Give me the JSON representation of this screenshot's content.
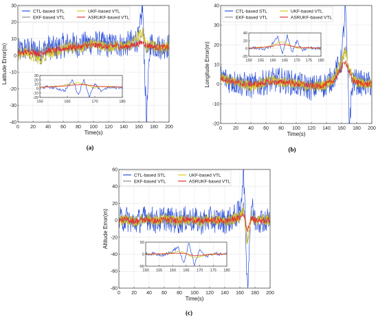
{
  "colors": {
    "CTL-based STL": "#2a4fd8",
    "EKF-based VTL": "#8a8a8a",
    "UKF-based VTL": "#d8c820",
    "ASRUKF-based VTL": "#e23030"
  },
  "chart_data": [
    {
      "type": "line",
      "panel_label": "(a)",
      "xlabel": "Time(s)",
      "ylabel": "Latitude Error(m)",
      "xlim": [
        0,
        200
      ],
      "ylim": [
        -40,
        30
      ],
      "xticks": [
        0,
        20,
        40,
        60,
        80,
        100,
        120,
        140,
        160,
        180,
        200
      ],
      "yticks": [
        -40,
        -30,
        -20,
        -10,
        0,
        10,
        20,
        30
      ],
      "grid": true,
      "legend_position": "top",
      "series": [
        {
          "name": "CTL-based STL",
          "x": [
            0,
            10,
            20,
            30,
            40,
            50,
            60,
            70,
            80,
            90,
            100,
            110,
            120,
            130,
            140,
            150,
            160,
            165,
            170,
            175,
            180,
            190,
            200
          ],
          "y": [
            2,
            4,
            3,
            2,
            5,
            4,
            6,
            7,
            6,
            7,
            8,
            7,
            6,
            7,
            6,
            8,
            10,
            30,
            -40,
            8,
            6,
            5,
            6
          ]
        },
        {
          "name": "EKF-based VTL",
          "x": [
            0,
            10,
            20,
            30,
            40,
            50,
            60,
            70,
            80,
            90,
            100,
            110,
            120,
            130,
            140,
            150,
            160,
            165,
            170,
            175,
            180,
            190,
            200
          ],
          "y": [
            1,
            3,
            2,
            1,
            4,
            3,
            5,
            6,
            5,
            6,
            7,
            6,
            5,
            6,
            5,
            7,
            8,
            14,
            4,
            7,
            5,
            4,
            5
          ]
        },
        {
          "name": "UKF-based VTL",
          "x": [
            0,
            10,
            20,
            30,
            40,
            50,
            60,
            70,
            80,
            90,
            100,
            110,
            120,
            130,
            140,
            150,
            160,
            165,
            170,
            175,
            180,
            190,
            200
          ],
          "y": [
            0,
            2,
            -1,
            -3,
            2,
            1,
            4,
            5,
            4,
            6,
            7,
            6,
            5,
            6,
            5,
            7,
            12,
            14,
            5,
            8,
            6,
            5,
            6
          ]
        },
        {
          "name": "ASRUKF-based VTL",
          "x": [
            0,
            10,
            20,
            30,
            40,
            50,
            60,
            70,
            80,
            90,
            100,
            110,
            120,
            130,
            140,
            150,
            160,
            165,
            170,
            175,
            180,
            190,
            200
          ],
          "y": [
            1,
            2,
            2,
            1,
            3,
            3,
            4,
            5,
            5,
            6,
            6,
            6,
            5,
            6,
            5,
            6,
            7,
            8,
            6,
            6,
            5,
            5,
            5
          ]
        }
      ],
      "inset": {
        "xlim": [
          150,
          180
        ],
        "ylim": [
          -20,
          30
        ],
        "xticks": [
          150,
          160,
          170,
          180
        ],
        "yticks": [
          -20,
          -10,
          0,
          10,
          20,
          30
        ],
        "series": [
          {
            "name": "CTL-based STL",
            "x": [
              150,
              153,
              156,
              159,
              162,
              164,
              166,
              168,
              170,
              172,
              175,
              178,
              180
            ],
            "y": [
              2,
              4,
              1,
              -5,
              20,
              -15,
              22,
              -18,
              10,
              -5,
              3,
              2,
              4
            ]
          },
          {
            "name": "UKF-based VTL",
            "x": [
              150,
              153,
              156,
              159,
              162,
              164,
              166,
              168,
              170,
              172,
              175,
              178,
              180
            ],
            "y": [
              3,
              4,
              5,
              8,
              12,
              14,
              10,
              5,
              2,
              4,
              5,
              4,
              3
            ]
          },
          {
            "name": "ASRUKF-based VTL",
            "x": [
              150,
              153,
              156,
              159,
              162,
              164,
              166,
              168,
              170,
              172,
              175,
              178,
              180
            ],
            "y": [
              3,
              4,
              5,
              6,
              8,
              9,
              9,
              8,
              6,
              5,
              4,
              4,
              3
            ]
          }
        ]
      }
    },
    {
      "type": "line",
      "panel_label": "(b)",
      "xlabel": "Time(s)",
      "ylabel": "Longitude Error(m)",
      "xlim": [
        0,
        200
      ],
      "ylim": [
        -20,
        40
      ],
      "xticks": [
        0,
        20,
        40,
        60,
        80,
        100,
        120,
        140,
        160,
        180,
        200
      ],
      "yticks": [
        -20,
        -10,
        0,
        10,
        20,
        30,
        40
      ],
      "grid": true,
      "legend_position": "top",
      "series": [
        {
          "name": "CTL-based STL",
          "x": [
            0,
            10,
            20,
            30,
            40,
            50,
            60,
            70,
            80,
            90,
            100,
            110,
            120,
            130,
            140,
            150,
            160,
            165,
            170,
            175,
            180,
            190,
            200
          ],
          "y": [
            4,
            2,
            1,
            0,
            -1,
            0,
            1,
            2,
            2,
            1,
            0,
            -1,
            -2,
            -1,
            0,
            4,
            12,
            40,
            -20,
            2,
            1,
            0,
            0
          ]
        },
        {
          "name": "EKF-based VTL",
          "x": [
            0,
            10,
            20,
            30,
            40,
            50,
            60,
            70,
            80,
            90,
            100,
            110,
            120,
            130,
            140,
            150,
            160,
            165,
            170,
            175,
            180,
            190,
            200
          ],
          "y": [
            3,
            2,
            1,
            0,
            -1,
            0,
            1,
            2,
            1,
            1,
            0,
            -1,
            -1,
            -1,
            0,
            3,
            10,
            18,
            6,
            2,
            1,
            0,
            0
          ]
        },
        {
          "name": "UKF-based VTL",
          "x": [
            0,
            10,
            20,
            30,
            40,
            50,
            60,
            70,
            80,
            90,
            100,
            110,
            120,
            130,
            140,
            150,
            160,
            165,
            170,
            175,
            180,
            190,
            200
          ],
          "y": [
            3,
            2,
            1,
            0,
            -1,
            0,
            1,
            2,
            1,
            1,
            0,
            -1,
            -1,
            -1,
            0,
            3,
            12,
            16,
            8,
            3,
            1,
            0,
            0
          ]
        },
        {
          "name": "ASRUKF-based VTL",
          "x": [
            0,
            10,
            20,
            30,
            40,
            50,
            60,
            70,
            80,
            90,
            100,
            110,
            120,
            130,
            140,
            150,
            160,
            165,
            170,
            175,
            180,
            190,
            200
          ],
          "y": [
            3,
            2,
            1,
            0,
            0,
            0,
            1,
            1,
            1,
            1,
            0,
            0,
            -1,
            -1,
            0,
            2,
            8,
            12,
            6,
            2,
            1,
            0,
            0
          ]
        }
      ],
      "inset": {
        "xlim": [
          150,
          180
        ],
        "ylim": [
          -20,
          40
        ],
        "xticks": [
          150,
          155,
          160,
          165,
          170,
          175,
          180
        ],
        "yticks": [
          -20,
          0,
          20,
          40
        ],
        "series": [
          {
            "name": "CTL-based STL",
            "x": [
              150,
              153,
              156,
              159,
              162,
              164,
              166,
              168,
              170,
              172,
              175,
              178,
              180
            ],
            "y": [
              0,
              2,
              -2,
              5,
              30,
              -15,
              35,
              -10,
              20,
              -5,
              2,
              0,
              1
            ]
          },
          {
            "name": "UKF-based VTL",
            "x": [
              150,
              153,
              156,
              159,
              162,
              164,
              166,
              168,
              170,
              172,
              175,
              178,
              180
            ],
            "y": [
              1,
              2,
              3,
              6,
              14,
              18,
              12,
              6,
              2,
              1,
              2,
              1,
              1
            ]
          },
          {
            "name": "ASRUKF-based VTL",
            "x": [
              150,
              153,
              156,
              159,
              162,
              164,
              166,
              168,
              170,
              172,
              175,
              178,
              180
            ],
            "y": [
              1,
              2,
              3,
              5,
              9,
              11,
              9,
              6,
              3,
              2,
              2,
              1,
              1
            ]
          }
        ]
      }
    },
    {
      "type": "line",
      "panel_label": "(c)",
      "xlabel": "Time(s)",
      "ylabel": "Altitude Error(m)",
      "xlim": [
        0,
        200
      ],
      "ylim": [
        -80,
        60
      ],
      "xticks": [
        0,
        20,
        40,
        60,
        80,
        100,
        120,
        140,
        160,
        180,
        200
      ],
      "yticks": [
        -80,
        -60,
        -40,
        -20,
        0,
        20,
        40,
        60
      ],
      "grid": true,
      "legend_position": "top",
      "series": [
        {
          "name": "CTL-based STL",
          "x": [
            0,
            10,
            20,
            30,
            40,
            50,
            60,
            70,
            80,
            90,
            100,
            110,
            120,
            130,
            140,
            150,
            160,
            165,
            170,
            175,
            180,
            190,
            200
          ],
          "y": [
            0,
            2,
            -3,
            1,
            4,
            -2,
            3,
            0,
            -1,
            2,
            0,
            -2,
            1,
            0,
            -1,
            2,
            10,
            60,
            -80,
            20,
            0,
            1,
            0
          ]
        },
        {
          "name": "EKF-based VTL",
          "x": [
            0,
            10,
            20,
            30,
            40,
            50,
            60,
            70,
            80,
            90,
            100,
            110,
            120,
            130,
            140,
            150,
            160,
            165,
            170,
            175,
            180,
            190,
            200
          ],
          "y": [
            0,
            1,
            -2,
            1,
            2,
            -1,
            2,
            0,
            -1,
            1,
            0,
            -1,
            1,
            0,
            -1,
            1,
            4,
            15,
            -25,
            6,
            0,
            1,
            0
          ]
        },
        {
          "name": "UKF-based VTL",
          "x": [
            0,
            10,
            20,
            30,
            40,
            50,
            60,
            70,
            80,
            90,
            100,
            110,
            120,
            130,
            140,
            150,
            160,
            165,
            170,
            175,
            180,
            190,
            200
          ],
          "y": [
            0,
            1,
            -2,
            1,
            2,
            -1,
            2,
            0,
            -1,
            1,
            0,
            -1,
            1,
            0,
            -1,
            1,
            5,
            12,
            -30,
            5,
            0,
            1,
            0
          ]
        },
        {
          "name": "ASRUKF-based VTL",
          "x": [
            0,
            10,
            20,
            30,
            40,
            50,
            60,
            70,
            80,
            90,
            100,
            110,
            120,
            130,
            140,
            150,
            160,
            165,
            170,
            175,
            180,
            190,
            200
          ],
          "y": [
            0,
            1,
            -1,
            0,
            1,
            -1,
            1,
            0,
            0,
            1,
            0,
            -1,
            0,
            0,
            -1,
            1,
            3,
            8,
            -12,
            3,
            0,
            0,
            0
          ]
        }
      ],
      "inset": {
        "xlim": [
          150,
          180
        ],
        "ylim": [
          -50,
          50
        ],
        "xticks": [
          150,
          155,
          160,
          165,
          170,
          175,
          180
        ],
        "yticks": [
          -50,
          0,
          50
        ],
        "series": [
          {
            "name": "CTL-based STL",
            "x": [
              150,
              153,
              156,
              159,
              162,
              164,
              166,
              168,
              170,
              172,
              175,
              178,
              180
            ],
            "y": [
              0,
              2,
              -3,
              5,
              30,
              -40,
              45,
              -45,
              20,
              -10,
              3,
              0,
              1
            ]
          },
          {
            "name": "UKF-based VTL",
            "x": [
              150,
              153,
              156,
              159,
              162,
              164,
              166,
              168,
              170,
              172,
              175,
              178,
              180
            ],
            "y": [
              0,
              1,
              2,
              4,
              10,
              8,
              -5,
              -15,
              -12,
              -5,
              0,
              1,
              0
            ]
          },
          {
            "name": "ASRUKF-based VTL",
            "x": [
              150,
              153,
              156,
              159,
              162,
              164,
              166,
              168,
              170,
              172,
              175,
              178,
              180
            ],
            "y": [
              0,
              1,
              1,
              2,
              4,
              3,
              -2,
              -6,
              -5,
              -2,
              0,
              0,
              0
            ]
          }
        ]
      }
    }
  ]
}
